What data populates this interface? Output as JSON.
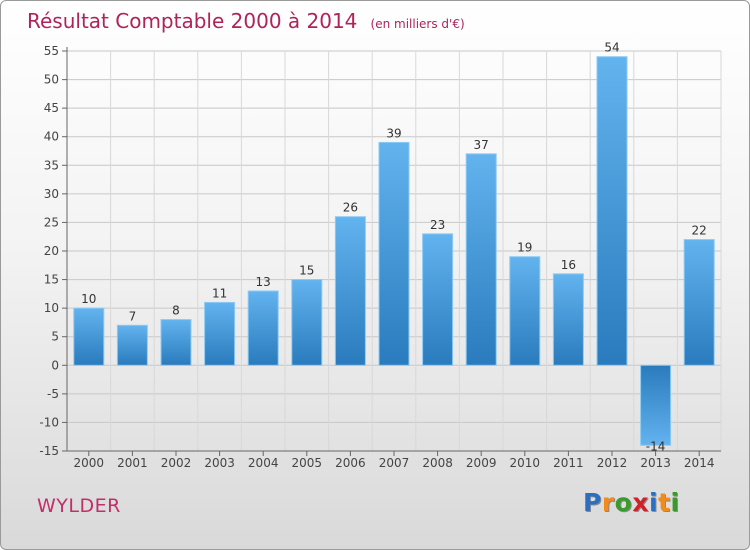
{
  "title": "Résultat Comptable 2000 à 2014",
  "subtitle": "(en milliers d'€)",
  "commune": "WYLDER",
  "logo": {
    "text": "Proxiti",
    "letters": [
      {
        "char": "P",
        "color": "#2a6fc4"
      },
      {
        "char": "r",
        "color": "#f18b1d"
      },
      {
        "char": "o",
        "color": "#3a9a2a"
      },
      {
        "char": "x",
        "color": "#d2202a"
      },
      {
        "char": "i",
        "color": "#2a6fc4"
      },
      {
        "char": "t",
        "color": "#f18b1d"
      },
      {
        "char": "i",
        "color": "#3a9a2a"
      }
    ]
  },
  "colors": {
    "bar_light": "#5fb0ec",
    "bar_dark": "#2a7bbd",
    "title": "#b0235a",
    "axis": "#555555"
  },
  "chart_data": {
    "type": "bar",
    "categories": [
      "2000",
      "2001",
      "2002",
      "2003",
      "2004",
      "2005",
      "2006",
      "2007",
      "2008",
      "2009",
      "2010",
      "2011",
      "2012",
      "2013",
      "2014"
    ],
    "values": [
      10,
      7,
      8,
      11,
      13,
      15,
      26,
      39,
      23,
      37,
      19,
      16,
      54,
      -14,
      22
    ],
    "labels": [
      "10",
      "7",
      "8",
      "11",
      "13",
      "15",
      "26",
      "39",
      "23",
      "37",
      "19",
      "16",
      "54",
      "-14",
      "22"
    ],
    "title": "Résultat Comptable 2000 à 2014",
    "subtitle": "(en milliers d'€)",
    "ylim": [
      -15,
      55
    ],
    "yticks": [
      -15,
      -10,
      -5,
      0,
      5,
      10,
      15,
      20,
      25,
      30,
      35,
      40,
      45,
      50,
      55
    ],
    "grid": true,
    "legend": "none"
  }
}
